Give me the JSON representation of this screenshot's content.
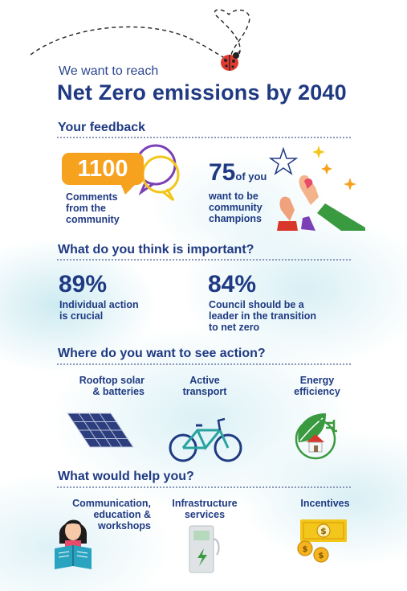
{
  "header": {
    "intro": "We want to reach",
    "title": "Net Zero emissions by 2040"
  },
  "feedback": {
    "heading": "Your feedback",
    "comments_count": "1100",
    "comments_label": [
      "Comments",
      "from the",
      "community"
    ],
    "champions_count": "75",
    "champions_suffix": "of you",
    "champions_label": [
      "want to be",
      "community",
      "champions"
    ]
  },
  "important": {
    "heading": "What do you think is important?",
    "stat1_value": "89%",
    "stat1_label": [
      "Individual action",
      "is crucial"
    ],
    "stat2_value": "84%",
    "stat2_label": [
      "Council should be a",
      "leader in the transition",
      "to net zero"
    ]
  },
  "action": {
    "heading": "Where do you want to see action?",
    "items": [
      {
        "label": [
          "Rooftop solar",
          "& batteries"
        ],
        "icon": "solar-panel-icon"
      },
      {
        "label": [
          "Active",
          "transport"
        ],
        "icon": "bicycle-icon"
      },
      {
        "label": [
          "Energy",
          "efficiency"
        ],
        "icon": "eco-house-plug-icon"
      }
    ]
  },
  "help": {
    "heading": "What would help you?",
    "items": [
      {
        "label": [
          "Communication,",
          "education &",
          "workshops"
        ],
        "icon": "person-reading-icon"
      },
      {
        "label": [
          "Infrastructure",
          "services"
        ],
        "icon": "ev-charger-icon"
      },
      {
        "label": [
          "Incentives"
        ],
        "icon": "money-coins-icon"
      }
    ]
  },
  "colors": {
    "navy": "#1f3a82",
    "orange": "#f6a21e",
    "purple": "#7b3fb6",
    "yellow": "#f3c61b",
    "green": "#3a9a3f",
    "red": "#d9372b"
  }
}
